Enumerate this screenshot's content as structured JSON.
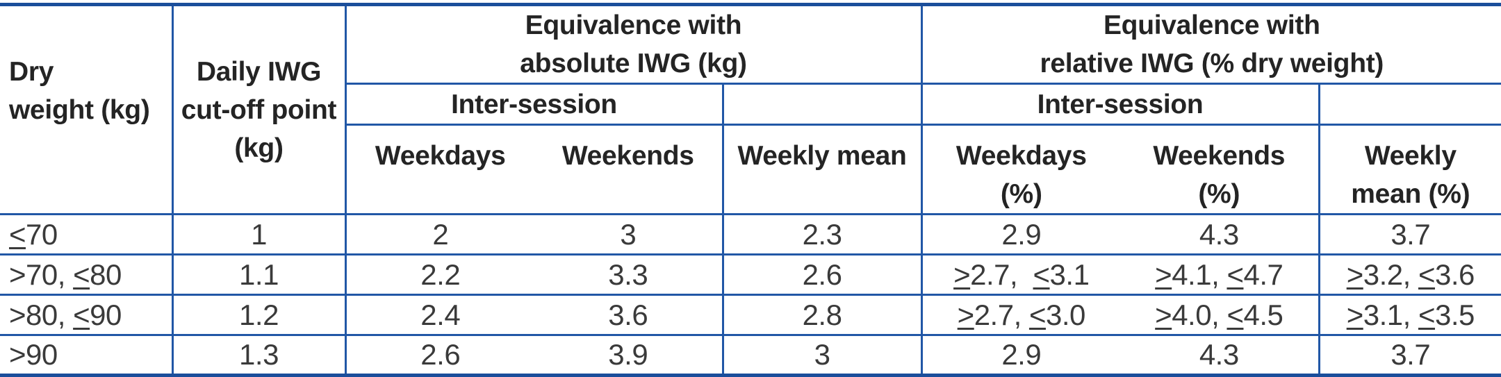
{
  "colors": {
    "border_blue": "#2157a6",
    "border_blue_thick": "#1b4e9b",
    "header_text": "#242424",
    "data_text": "#3a3a3a"
  },
  "table": {
    "header": {
      "dry_weight": "Dry\nweight (kg)",
      "daily_iwg": "Daily IWG\ncut-off point\n(kg)",
      "group_absolute": "Equivalence with\nabsolute IWG (kg)",
      "group_relative": "Equivalence with\nrelative IWG (% dry weight)",
      "intersession_absolute": "Inter-session",
      "intersession_relative": "Inter-session",
      "weekdays_absolute": "Weekdays",
      "weekends_absolute": "Weekends",
      "weekly_mean_absolute": "Weekly mean",
      "weekdays_relative": "Weekdays\n(%)",
      "weekends_relative": "Weekends\n(%)",
      "weekly_mean_relative": "Weekly\nmean  (%)"
    },
    "rows": [
      [
        "≤70",
        "1",
        "2",
        "3",
        "2.3",
        "2.9",
        "4.3",
        "3.7"
      ],
      [
        ">70, ≤80",
        "1.1",
        "2.2",
        "3.3",
        "2.6",
        "≥2.7,  ≤3.1",
        "≥4.1, ≤4.7",
        "≥3.2, ≤3.6"
      ],
      [
        ">80, ≤90",
        "1.2",
        "2.4",
        "3.6",
        "2.8",
        "≥2.7, ≤3.0",
        "≥4.0, ≤4.5",
        "≥3.1, ≤3.5"
      ],
      [
        ">90",
        "1.3",
        "2.6",
        "3.9",
        "3",
        "2.9",
        "4.3",
        "3.7"
      ]
    ]
  }
}
